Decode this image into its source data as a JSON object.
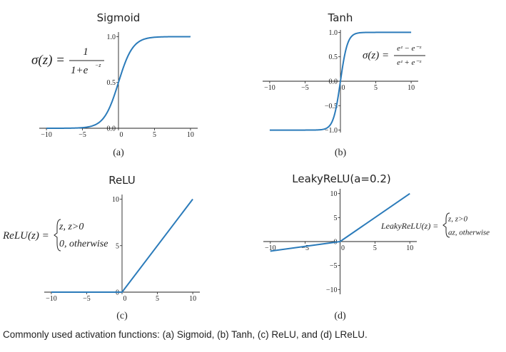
{
  "caption": "Commonly used activation functions: (a) Sigmoid, (b) Tanh, (c) ReLU, and (d) LReLU.",
  "colors": {
    "curve": "#2b7bba",
    "axis": "#222222"
  },
  "chart_data": [
    {
      "type": "line",
      "title": "Sigmoid",
      "panel_label": "(a)",
      "function": "sigmoid",
      "xlim": [
        -11,
        11
      ],
      "ylim": [
        0,
        1.05
      ],
      "xticks": [
        -10,
        -5,
        0,
        5,
        10
      ],
      "yticks": [
        0.0,
        0.5,
        1.0
      ],
      "xtick_labels": [
        "−10",
        "−5",
        "0",
        "5",
        "10"
      ],
      "ytick_labels": [
        "0.0",
        "0.5",
        "1.0"
      ],
      "equation": {
        "lhs": "σ(z) =",
        "num": "1",
        "den": "1+e",
        "den_exp": "−z"
      },
      "series": [
        {
          "x": [
            -10,
            -8,
            -6,
            -5,
            -4,
            -3,
            -2,
            -1,
            0,
            1,
            2,
            3,
            4,
            5,
            6,
            8,
            10
          ],
          "y": [
            5e-05,
            0.0003,
            0.0025,
            0.0067,
            0.018,
            0.047,
            0.119,
            0.269,
            0.5,
            0.731,
            0.881,
            0.953,
            0.982,
            0.993,
            0.9975,
            0.9997,
            0.99995
          ]
        }
      ]
    },
    {
      "type": "line",
      "title": "Tanh",
      "panel_label": "(b)",
      "function": "tanh",
      "xlim": [
        -11,
        11
      ],
      "ylim": [
        -1.05,
        1.05
      ],
      "xticks": [
        -10,
        -5,
        0,
        5,
        10
      ],
      "yticks": [
        -1.0,
        -0.5,
        0.0,
        0.5,
        1.0
      ],
      "xtick_labels": [
        "−10",
        "−5",
        "0",
        "5",
        "10"
      ],
      "ytick_labels": [
        "−1.0",
        "−0.5",
        "0.0",
        "0.5",
        "1.0"
      ],
      "equation": {
        "lhs": "σ(z) =",
        "num": "eᶻ − e⁻ᶻ",
        "den": "eᶻ + e⁻ᶻ"
      },
      "series": [
        {
          "x": [
            -10,
            -4,
            -3,
            -2,
            -1.5,
            -1,
            -0.5,
            0,
            0.5,
            1,
            1.5,
            2,
            3,
            4,
            10
          ],
          "y": [
            -1.0,
            -0.9993,
            -0.995,
            -0.964,
            -0.905,
            -0.762,
            -0.462,
            0.0,
            0.462,
            0.762,
            0.905,
            0.964,
            0.995,
            0.9993,
            1.0
          ]
        }
      ]
    },
    {
      "type": "line",
      "title": "ReLU",
      "panel_label": "(c)",
      "function": "relu",
      "xlim": [
        -11,
        11
      ],
      "ylim": [
        0,
        10.5
      ],
      "xticks": [
        -10,
        -5,
        0,
        5,
        10
      ],
      "yticks": [
        0,
        5,
        10
      ],
      "xtick_labels": [
        "−10",
        "−5",
        "0",
        "5",
        "10"
      ],
      "ytick_labels": [
        "0",
        "5",
        "10"
      ],
      "equation": {
        "lhs": "ReLU(z) =",
        "case1": "z, z>0",
        "case2": "0, otherwise"
      },
      "series": [
        {
          "x": [
            -10,
            0,
            10
          ],
          "y": [
            0,
            0,
            10
          ]
        }
      ]
    },
    {
      "type": "line",
      "title": "LeakyReLU(a=0.2)",
      "panel_label": "(d)",
      "function": "leaky_relu",
      "alpha": 0.2,
      "xlim": [
        -11,
        11
      ],
      "ylim": [
        -11,
        11
      ],
      "xticks": [
        -10,
        -5,
        0,
        5,
        10
      ],
      "yticks": [
        -10,
        -5,
        0,
        5,
        10
      ],
      "xtick_labels": [
        "−10",
        "−5",
        "0",
        "5",
        "10"
      ],
      "ytick_labels": [
        "−10",
        "−5",
        "0",
        "5",
        "10"
      ],
      "equation": {
        "lhs": "LeakyReLU(z) =",
        "case1": "z, z>0",
        "case2": "az, otherwise"
      },
      "series": [
        {
          "x": [
            -10,
            0,
            10
          ],
          "y": [
            -2,
            0,
            10
          ]
        }
      ]
    }
  ]
}
